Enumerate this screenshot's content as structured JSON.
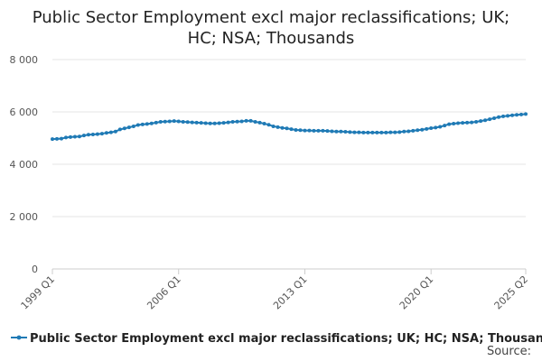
{
  "page": {
    "title_line1": "Public Sector Employment excl major reclassifications; UK;",
    "title_line2": "HC; NSA; Thousands",
    "source_label": "Source:"
  },
  "chart_data": {
    "type": "line",
    "title": "Public Sector Employment excl major reclassifications; UK; HC; NSA; Thousands",
    "xlabel": "",
    "ylabel": "",
    "ylim": [
      0,
      8000
    ],
    "yticks": [
      0,
      2000,
      4000,
      6000,
      8000
    ],
    "ytick_labels": [
      "0",
      "2 000",
      "4 000",
      "6 000",
      "8 000"
    ],
    "x_start": "1999 Q1",
    "x_end": "2025 Q2",
    "xtick_labels": [
      "1999 Q1",
      "2006 Q1",
      "2013 Q1",
      "2020 Q1",
      "2025 Q2"
    ],
    "xtick_indices": [
      0,
      28,
      56,
      84,
      105
    ],
    "legend": "top-left below plot",
    "color": "#1f7ab5",
    "series": [
      {
        "name": "Public Sector Employment excl major reclassifications; UK; HC; NSA; Thousands",
        "values": [
          4960,
          4970,
          4980,
          5020,
          5040,
          5050,
          5060,
          5100,
          5130,
          5140,
          5150,
          5170,
          5200,
          5220,
          5250,
          5330,
          5370,
          5410,
          5450,
          5500,
          5520,
          5540,
          5560,
          5590,
          5620,
          5630,
          5640,
          5650,
          5640,
          5620,
          5610,
          5600,
          5590,
          5580,
          5570,
          5560,
          5560,
          5570,
          5580,
          5600,
          5620,
          5630,
          5640,
          5660,
          5660,
          5620,
          5590,
          5550,
          5510,
          5450,
          5420,
          5390,
          5370,
          5340,
          5310,
          5300,
          5290,
          5290,
          5280,
          5280,
          5280,
          5270,
          5260,
          5250,
          5250,
          5240,
          5230,
          5220,
          5220,
          5210,
          5210,
          5210,
          5210,
          5210,
          5210,
          5220,
          5220,
          5230,
          5250,
          5260,
          5280,
          5300,
          5320,
          5350,
          5380,
          5400,
          5430,
          5480,
          5530,
          5550,
          5570,
          5580,
          5590,
          5600,
          5620,
          5650,
          5680,
          5720,
          5760,
          5800,
          5830,
          5850,
          5870,
          5890,
          5900,
          5920
        ]
      }
    ]
  }
}
